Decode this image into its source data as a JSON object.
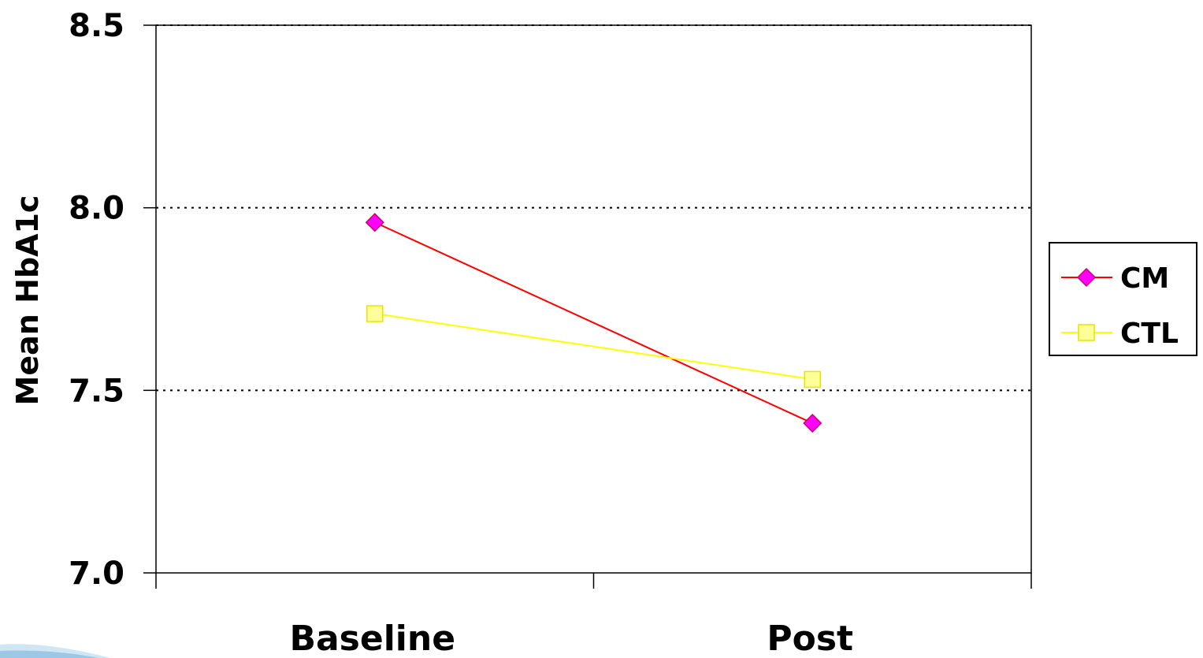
{
  "chart_data": {
    "type": "line",
    "categories": [
      "Baseline",
      "Post"
    ],
    "series": [
      {
        "name": "CM",
        "values": [
          7.96,
          7.41
        ],
        "color": "#ff0000",
        "marker": "diamond",
        "marker_fill": "#ff00ff",
        "marker_stroke": "#cc0066"
      },
      {
        "name": "CTL",
        "values": [
          7.71,
          7.53
        ],
        "color": "#ffff00",
        "marker": "square",
        "marker_fill": "#ffff99",
        "marker_stroke": "#e6e600"
      }
    ],
    "title": "",
    "xlabel": "",
    "ylabel": "Mean HbA1c",
    "ylim": [
      7.0,
      8.5
    ],
    "yticks": [
      7.0,
      7.5,
      8.0,
      8.5
    ],
    "ytick_labels": [
      "7.0",
      "7.5",
      "8.0",
      "8.5"
    ],
    "grid": "horizontal dotted",
    "legend": "right"
  }
}
